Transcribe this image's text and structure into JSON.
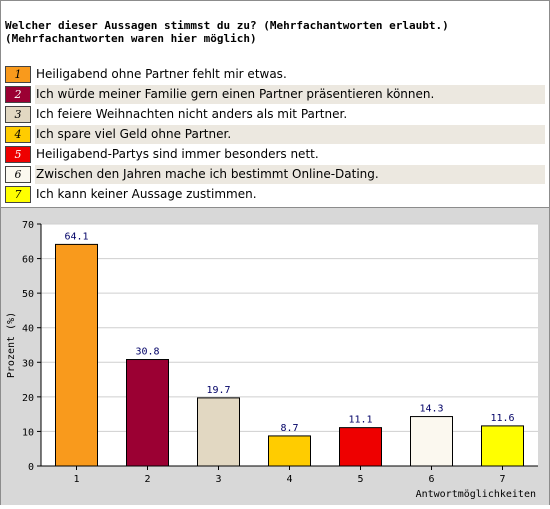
{
  "question": {
    "line1": "Welcher dieser Aussagen stimmst du zu? (Mehrfachantworten erlaubt.)",
    "line2": "(Mehrfachantworten waren hier möglich)"
  },
  "legend": [
    {
      "num": "1",
      "label": "Heiligabend ohne Partner fehlt mir etwas.",
      "color": "#f99a1c"
    },
    {
      "num": "2",
      "label": "Ich würde meiner Familie gern einen Partner präsentieren können.",
      "color": "#9b0033"
    },
    {
      "num": "3",
      "label": "Ich feiere Weihnachten nicht anders als mit Partner.",
      "color": "#e2d8c2"
    },
    {
      "num": "4",
      "label": "Ich spare viel Geld ohne Partner.",
      "color": "#ffcc00"
    },
    {
      "num": "5",
      "label": "Heiligabend-Partys sind immer besonders nett.",
      "color": "#ee0000"
    },
    {
      "num": "6",
      "label": "Zwischen den Jahren mache ich bestimmt Online-Dating.",
      "color": "#fbf8ef"
    },
    {
      "num": "7",
      "label": "Ich kann keiner Aussage zustimmen.",
      "color": "#ffff00"
    }
  ],
  "chart_data": {
    "type": "bar",
    "categories": [
      "1",
      "2",
      "3",
      "4",
      "5",
      "6",
      "7"
    ],
    "values": [
      64.1,
      30.8,
      19.7,
      8.7,
      11.1,
      14.3,
      11.6
    ],
    "value_labels": [
      "64.1",
      "30.8",
      "19.7",
      "8.7",
      "11.1",
      "14.3",
      "11.6"
    ],
    "colors": [
      "#f99a1c",
      "#9b0033",
      "#e2d8c2",
      "#ffcc00",
      "#ee0000",
      "#fbf8ef",
      "#ffff00"
    ],
    "xlabel": "Antwortmöglichkeiten",
    "ylabel": "Prozent (%)",
    "ylim": [
      0,
      70
    ],
    "yticks": [
      "0",
      "10",
      "20",
      "30",
      "40",
      "50",
      "60",
      "70"
    ],
    "grid": true
  }
}
